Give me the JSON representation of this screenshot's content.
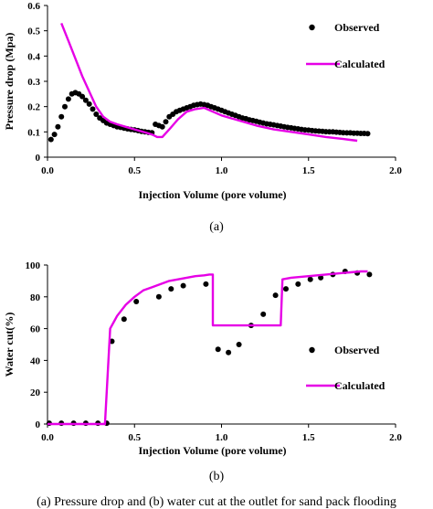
{
  "caption": "(a) Pressure drop and (b) water cut at the outlet for sand pack flooding",
  "colors": {
    "observed": "#000000",
    "calculated": "#e600e6"
  },
  "chart_data": [
    {
      "type": "line",
      "sublabel": "(a)",
      "xlabel": "Injection Volume (pore volume)",
      "ylabel": "Pressure drop (Mpa)",
      "xlim": [
        0,
        2.0
      ],
      "ylim": [
        0,
        0.6
      ],
      "xticks": [
        "0.0",
        "0.5",
        "1.0",
        "1.5",
        "2.0"
      ],
      "yticks": [
        "0",
        "0.1",
        "0.2",
        "0.3",
        "0.4",
        "0.5",
        "0.6"
      ],
      "xtick_values": [
        0,
        0.5,
        1.0,
        1.5,
        2.0
      ],
      "ytick_values": [
        0,
        0.1,
        0.2,
        0.3,
        0.4,
        0.5,
        0.6
      ],
      "legend_position": "top-right",
      "series": [
        {
          "name": "Observed",
          "style": "markers",
          "x": [
            0.02,
            0.04,
            0.06,
            0.08,
            0.1,
            0.12,
            0.14,
            0.16,
            0.18,
            0.2,
            0.22,
            0.24,
            0.26,
            0.28,
            0.3,
            0.32,
            0.34,
            0.36,
            0.38,
            0.4,
            0.42,
            0.44,
            0.46,
            0.48,
            0.5,
            0.52,
            0.54,
            0.56,
            0.58,
            0.6,
            0.62,
            0.64,
            0.66,
            0.68,
            0.7,
            0.72,
            0.74,
            0.76,
            0.78,
            0.8,
            0.82,
            0.84,
            0.86,
            0.88,
            0.9,
            0.92,
            0.94,
            0.96,
            0.98,
            1.0,
            1.02,
            1.04,
            1.06,
            1.08,
            1.1,
            1.12,
            1.14,
            1.16,
            1.18,
            1.2,
            1.22,
            1.24,
            1.26,
            1.28,
            1.3,
            1.32,
            1.34,
            1.36,
            1.38,
            1.4,
            1.42,
            1.44,
            1.46,
            1.48,
            1.5,
            1.52,
            1.54,
            1.56,
            1.58,
            1.6,
            1.62,
            1.64,
            1.66,
            1.68,
            1.7,
            1.72,
            1.74,
            1.76,
            1.78,
            1.8,
            1.82,
            1.84
          ],
          "y": [
            0.07,
            0.09,
            0.12,
            0.16,
            0.2,
            0.23,
            0.25,
            0.255,
            0.25,
            0.24,
            0.225,
            0.21,
            0.19,
            0.17,
            0.155,
            0.145,
            0.135,
            0.13,
            0.125,
            0.12,
            0.118,
            0.115,
            0.112,
            0.11,
            0.108,
            0.105,
            0.102,
            0.1,
            0.098,
            0.097,
            0.13,
            0.125,
            0.12,
            0.14,
            0.16,
            0.17,
            0.18,
            0.185,
            0.19,
            0.195,
            0.2,
            0.205,
            0.208,
            0.21,
            0.208,
            0.205,
            0.2,
            0.195,
            0.19,
            0.185,
            0.18,
            0.175,
            0.17,
            0.165,
            0.16,
            0.155,
            0.152,
            0.148,
            0.145,
            0.142,
            0.138,
            0.135,
            0.132,
            0.13,
            0.128,
            0.125,
            0.123,
            0.12,
            0.118,
            0.116,
            0.114,
            0.112,
            0.11,
            0.108,
            0.107,
            0.105,
            0.104,
            0.103,
            0.102,
            0.101,
            0.1,
            0.1,
            0.099,
            0.098,
            0.097,
            0.096,
            0.096,
            0.095,
            0.095,
            0.094,
            0.094,
            0.093
          ]
        },
        {
          "name": "Calculated",
          "style": "line",
          "x": [
            0.08,
            0.12,
            0.16,
            0.2,
            0.24,
            0.28,
            0.32,
            0.36,
            0.4,
            0.45,
            0.5,
            0.55,
            0.6,
            0.63,
            0.66,
            0.7,
            0.75,
            0.8,
            0.85,
            0.9,
            0.95,
            1.0,
            1.05,
            1.1,
            1.15,
            1.2,
            1.3,
            1.4,
            1.5,
            1.6,
            1.7,
            1.78
          ],
          "y": [
            0.53,
            0.46,
            0.39,
            0.32,
            0.26,
            0.2,
            0.16,
            0.14,
            0.13,
            0.12,
            0.11,
            0.1,
            0.09,
            0.08,
            0.08,
            0.11,
            0.15,
            0.18,
            0.19,
            0.195,
            0.18,
            0.165,
            0.155,
            0.145,
            0.135,
            0.125,
            0.11,
            0.1,
            0.09,
            0.08,
            0.072,
            0.065
          ]
        }
      ]
    },
    {
      "type": "line",
      "sublabel": "(b)",
      "xlabel": "Injection Volume (pore volume)",
      "ylabel": "Water cut(%)",
      "xlim": [
        0,
        2.0
      ],
      "ylim": [
        0,
        100
      ],
      "xticks": [
        "0.0",
        "0.5",
        "1.0",
        "1.5",
        "2.0"
      ],
      "yticks": [
        "0",
        "20",
        "40",
        "60",
        "80",
        "100"
      ],
      "xtick_values": [
        0,
        0.5,
        1.0,
        1.5,
        2.0
      ],
      "ytick_values": [
        0,
        20,
        40,
        60,
        80,
        100
      ],
      "legend_position": "bottom-right",
      "series": [
        {
          "name": "Observed",
          "style": "markers",
          "x": [
            0.01,
            0.08,
            0.15,
            0.22,
            0.29,
            0.34,
            0.37,
            0.44,
            0.51,
            0.64,
            0.71,
            0.78,
            0.91,
            0.98,
            1.04,
            1.1,
            1.17,
            1.24,
            1.31,
            1.37,
            1.44,
            1.51,
            1.57,
            1.64,
            1.71,
            1.78,
            1.85
          ],
          "y": [
            0.5,
            0.5,
            0.5,
            0.5,
            0.5,
            0.5,
            52,
            66,
            77,
            80,
            85,
            87,
            88,
            47,
            45,
            50,
            62,
            69,
            81,
            85,
            88,
            91,
            92,
            94,
            96,
            95,
            94
          ]
        },
        {
          "name": "Calculated",
          "style": "line",
          "x": [
            0,
            0.33,
            0.36,
            0.4,
            0.45,
            0.5,
            0.55,
            0.6,
            0.65,
            0.7,
            0.75,
            0.8,
            0.85,
            0.9,
            0.93,
            0.95,
            0.95,
            1.0,
            1.1,
            1.2,
            1.3,
            1.34,
            1.35,
            1.4,
            1.5,
            1.6,
            1.7,
            1.8,
            1.84
          ],
          "y": [
            0,
            0,
            60,
            68,
            75,
            80,
            84,
            86,
            88,
            90,
            91,
            92,
            93,
            93.5,
            94,
            94,
            62,
            62,
            62,
            62,
            62,
            62,
            91,
            92,
            93,
            94,
            95,
            96,
            96
          ]
        }
      ]
    }
  ]
}
